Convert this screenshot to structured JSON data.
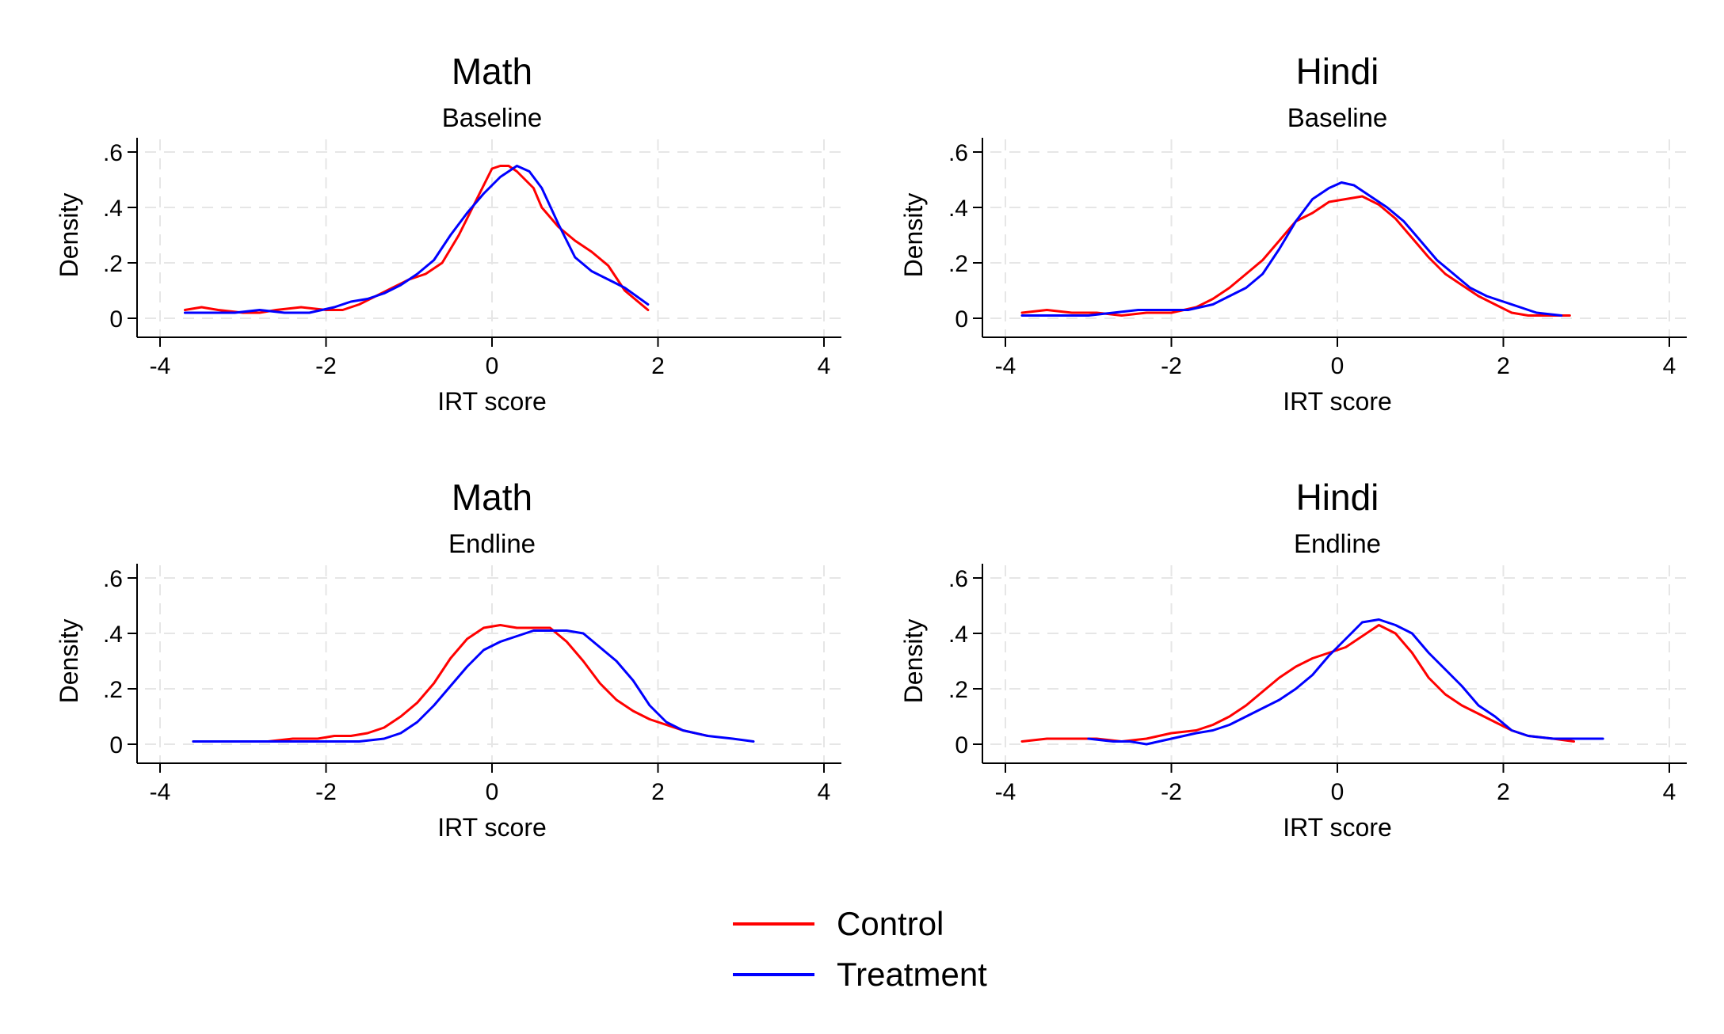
{
  "figure": {
    "colors": {
      "control": "#ff0000",
      "treatment": "#0000ff",
      "grid": "#e6e6e6",
      "axis": "#000000"
    },
    "legend": {
      "position": "bottom-center",
      "items": [
        "Control",
        "Treatment"
      ]
    }
  },
  "chart_data": [
    {
      "type": "line",
      "title": "Math",
      "subtitle": "Baseline",
      "xlabel": "IRT score",
      "ylabel": "Density",
      "xlim": [
        -4,
        4
      ],
      "ylim": [
        0,
        0.6
      ],
      "x_ticks": [
        "-4",
        "-2",
        "0",
        "2",
        "4"
      ],
      "y_ticks": [
        "0",
        ".2",
        ".4",
        ".6"
      ],
      "grid": true,
      "series": [
        {
          "name": "Control",
          "color": "#ff0000",
          "points": [
            [
              -3.7,
              0.03
            ],
            [
              -3.5,
              0.04
            ],
            [
              -3.3,
              0.03
            ],
            [
              -3.0,
              0.02
            ],
            [
              -2.8,
              0.02
            ],
            [
              -2.6,
              0.03
            ],
            [
              -2.3,
              0.04
            ],
            [
              -2.0,
              0.03
            ],
            [
              -1.8,
              0.03
            ],
            [
              -1.6,
              0.05
            ],
            [
              -1.4,
              0.08
            ],
            [
              -1.2,
              0.11
            ],
            [
              -1.0,
              0.14
            ],
            [
              -0.8,
              0.16
            ],
            [
              -0.6,
              0.2
            ],
            [
              -0.4,
              0.3
            ],
            [
              -0.2,
              0.42
            ],
            [
              0.0,
              0.54
            ],
            [
              0.1,
              0.55
            ],
            [
              0.2,
              0.55
            ],
            [
              0.3,
              0.53
            ],
            [
              0.5,
              0.47
            ],
            [
              0.6,
              0.4
            ],
            [
              0.8,
              0.33
            ],
            [
              1.0,
              0.28
            ],
            [
              1.2,
              0.24
            ],
            [
              1.4,
              0.19
            ],
            [
              1.6,
              0.1
            ],
            [
              1.8,
              0.05
            ],
            [
              1.88,
              0.03
            ]
          ]
        },
        {
          "name": "Treatment",
          "color": "#0000ff",
          "points": [
            [
              -3.7,
              0.02
            ],
            [
              -3.4,
              0.02
            ],
            [
              -3.1,
              0.02
            ],
            [
              -2.8,
              0.03
            ],
            [
              -2.5,
              0.02
            ],
            [
              -2.2,
              0.02
            ],
            [
              -1.9,
              0.04
            ],
            [
              -1.7,
              0.06
            ],
            [
              -1.5,
              0.07
            ],
            [
              -1.3,
              0.09
            ],
            [
              -1.1,
              0.12
            ],
            [
              -0.9,
              0.16
            ],
            [
              -0.7,
              0.21
            ],
            [
              -0.5,
              0.3
            ],
            [
              -0.3,
              0.38
            ],
            [
              -0.1,
              0.45
            ],
            [
              0.1,
              0.51
            ],
            [
              0.3,
              0.55
            ],
            [
              0.45,
              0.53
            ],
            [
              0.6,
              0.47
            ],
            [
              0.8,
              0.34
            ],
            [
              1.0,
              0.22
            ],
            [
              1.2,
              0.17
            ],
            [
              1.4,
              0.14
            ],
            [
              1.6,
              0.11
            ],
            [
              1.88,
              0.05
            ]
          ]
        }
      ]
    },
    {
      "type": "line",
      "title": "Hindi",
      "subtitle": "Baseline",
      "xlabel": "IRT score",
      "ylabel": "Density",
      "xlim": [
        -4,
        4
      ],
      "ylim": [
        0,
        0.6
      ],
      "x_ticks": [
        "-4",
        "-2",
        "0",
        "2",
        "4"
      ],
      "y_ticks": [
        "0",
        ".2",
        ".4",
        ".6"
      ],
      "grid": true,
      "series": [
        {
          "name": "Control",
          "color": "#ff0000",
          "points": [
            [
              -3.8,
              0.02
            ],
            [
              -3.5,
              0.03
            ],
            [
              -3.2,
              0.02
            ],
            [
              -2.9,
              0.02
            ],
            [
              -2.6,
              0.01
            ],
            [
              -2.3,
              0.02
            ],
            [
              -2.0,
              0.02
            ],
            [
              -1.7,
              0.04
            ],
            [
              -1.5,
              0.07
            ],
            [
              -1.3,
              0.11
            ],
            [
              -1.1,
              0.16
            ],
            [
              -0.9,
              0.21
            ],
            [
              -0.7,
              0.28
            ],
            [
              -0.5,
              0.35
            ],
            [
              -0.3,
              0.38
            ],
            [
              -0.1,
              0.42
            ],
            [
              0.1,
              0.43
            ],
            [
              0.3,
              0.44
            ],
            [
              0.5,
              0.41
            ],
            [
              0.7,
              0.36
            ],
            [
              0.9,
              0.29
            ],
            [
              1.1,
              0.22
            ],
            [
              1.3,
              0.16
            ],
            [
              1.5,
              0.12
            ],
            [
              1.7,
              0.08
            ],
            [
              1.9,
              0.05
            ],
            [
              2.1,
              0.02
            ],
            [
              2.3,
              0.01
            ],
            [
              2.5,
              0.01
            ],
            [
              2.8,
              0.01
            ]
          ]
        },
        {
          "name": "Treatment",
          "color": "#0000ff",
          "points": [
            [
              -3.8,
              0.01
            ],
            [
              -3.4,
              0.01
            ],
            [
              -3.0,
              0.01
            ],
            [
              -2.7,
              0.02
            ],
            [
              -2.4,
              0.03
            ],
            [
              -2.1,
              0.03
            ],
            [
              -1.8,
              0.03
            ],
            [
              -1.5,
              0.05
            ],
            [
              -1.3,
              0.08
            ],
            [
              -1.1,
              0.11
            ],
            [
              -0.9,
              0.16
            ],
            [
              -0.7,
              0.25
            ],
            [
              -0.5,
              0.35
            ],
            [
              -0.3,
              0.43
            ],
            [
              -0.1,
              0.47
            ],
            [
              0.05,
              0.49
            ],
            [
              0.2,
              0.48
            ],
            [
              0.4,
              0.44
            ],
            [
              0.6,
              0.4
            ],
            [
              0.8,
              0.35
            ],
            [
              1.0,
              0.28
            ],
            [
              1.2,
              0.21
            ],
            [
              1.4,
              0.16
            ],
            [
              1.6,
              0.11
            ],
            [
              1.8,
              0.08
            ],
            [
              2.0,
              0.06
            ],
            [
              2.2,
              0.04
            ],
            [
              2.4,
              0.02
            ],
            [
              2.7,
              0.01
            ]
          ]
        }
      ]
    },
    {
      "type": "line",
      "title": "Math",
      "subtitle": "Endline",
      "xlabel": "IRT score",
      "ylabel": "Density",
      "xlim": [
        -4,
        4
      ],
      "ylim": [
        0,
        0.6
      ],
      "x_ticks": [
        "-4",
        "-2",
        "0",
        "2",
        "4"
      ],
      "y_ticks": [
        "0",
        ".2",
        ".4",
        ".6"
      ],
      "grid": true,
      "series": [
        {
          "name": "Control",
          "color": "#ff0000",
          "points": [
            [
              -3.6,
              0.01
            ],
            [
              -3.3,
              0.01
            ],
            [
              -3.0,
              0.01
            ],
            [
              -2.7,
              0.01
            ],
            [
              -2.4,
              0.02
            ],
            [
              -2.1,
              0.02
            ],
            [
              -1.9,
              0.03
            ],
            [
              -1.7,
              0.03
            ],
            [
              -1.5,
              0.04
            ],
            [
              -1.3,
              0.06
            ],
            [
              -1.1,
              0.1
            ],
            [
              -0.9,
              0.15
            ],
            [
              -0.7,
              0.22
            ],
            [
              -0.5,
              0.31
            ],
            [
              -0.3,
              0.38
            ],
            [
              -0.1,
              0.42
            ],
            [
              0.1,
              0.43
            ],
            [
              0.3,
              0.42
            ],
            [
              0.5,
              0.42
            ],
            [
              0.7,
              0.42
            ],
            [
              0.9,
              0.37
            ],
            [
              1.1,
              0.3
            ],
            [
              1.3,
              0.22
            ],
            [
              1.5,
              0.16
            ],
            [
              1.7,
              0.12
            ],
            [
              1.9,
              0.09
            ],
            [
              2.1,
              0.07
            ],
            [
              2.3,
              0.05
            ],
            [
              2.6,
              0.03
            ]
          ]
        },
        {
          "name": "Treatment",
          "color": "#0000ff",
          "points": [
            [
              -3.6,
              0.01
            ],
            [
              -3.2,
              0.01
            ],
            [
              -2.8,
              0.01
            ],
            [
              -2.4,
              0.01
            ],
            [
              -2.0,
              0.01
            ],
            [
              -1.8,
              0.01
            ],
            [
              -1.6,
              0.01
            ],
            [
              -1.3,
              0.02
            ],
            [
              -1.1,
              0.04
            ],
            [
              -0.9,
              0.08
            ],
            [
              -0.7,
              0.14
            ],
            [
              -0.5,
              0.21
            ],
            [
              -0.3,
              0.28
            ],
            [
              -0.1,
              0.34
            ],
            [
              0.1,
              0.37
            ],
            [
              0.3,
              0.39
            ],
            [
              0.5,
              0.41
            ],
            [
              0.7,
              0.41
            ],
            [
              0.9,
              0.41
            ],
            [
              1.1,
              0.4
            ],
            [
              1.3,
              0.35
            ],
            [
              1.5,
              0.3
            ],
            [
              1.7,
              0.23
            ],
            [
              1.9,
              0.14
            ],
            [
              2.1,
              0.08
            ],
            [
              2.3,
              0.05
            ],
            [
              2.6,
              0.03
            ],
            [
              2.9,
              0.02
            ],
            [
              3.15,
              0.01
            ]
          ]
        }
      ]
    },
    {
      "type": "line",
      "title": "Hindi",
      "subtitle": "Endline",
      "xlabel": "IRT score",
      "ylabel": "Density",
      "xlim": [
        -4,
        4
      ],
      "ylim": [
        0,
        0.6
      ],
      "x_ticks": [
        "-4",
        "-2",
        "0",
        "2",
        "4"
      ],
      "y_ticks": [
        "0",
        ".2",
        ".4",
        ".6"
      ],
      "grid": true,
      "series": [
        {
          "name": "Control",
          "color": "#ff0000",
          "points": [
            [
              -3.8,
              0.01
            ],
            [
              -3.5,
              0.02
            ],
            [
              -3.2,
              0.02
            ],
            [
              -2.9,
              0.02
            ],
            [
              -2.6,
              0.01
            ],
            [
              -2.3,
              0.02
            ],
            [
              -2.0,
              0.04
            ],
            [
              -1.7,
              0.05
            ],
            [
              -1.5,
              0.07
            ],
            [
              -1.3,
              0.1
            ],
            [
              -1.1,
              0.14
            ],
            [
              -0.9,
              0.19
            ],
            [
              -0.7,
              0.24
            ],
            [
              -0.5,
              0.28
            ],
            [
              -0.3,
              0.31
            ],
            [
              -0.1,
              0.33
            ],
            [
              0.1,
              0.35
            ],
            [
              0.3,
              0.39
            ],
            [
              0.5,
              0.43
            ],
            [
              0.7,
              0.4
            ],
            [
              0.9,
              0.33
            ],
            [
              1.1,
              0.24
            ],
            [
              1.3,
              0.18
            ],
            [
              1.5,
              0.14
            ],
            [
              1.7,
              0.11
            ],
            [
              1.9,
              0.08
            ],
            [
              2.1,
              0.05
            ],
            [
              2.3,
              0.03
            ],
            [
              2.6,
              0.02
            ],
            [
              2.85,
              0.01
            ]
          ]
        },
        {
          "name": "Treatment",
          "color": "#0000ff",
          "points": [
            [
              -3.0,
              0.02
            ],
            [
              -2.7,
              0.01
            ],
            [
              -2.5,
              0.01
            ],
            [
              -2.3,
              0.0
            ],
            [
              -2.0,
              0.02
            ],
            [
              -1.7,
              0.04
            ],
            [
              -1.5,
              0.05
            ],
            [
              -1.3,
              0.07
            ],
            [
              -1.1,
              0.1
            ],
            [
              -0.9,
              0.13
            ],
            [
              -0.7,
              0.16
            ],
            [
              -0.5,
              0.2
            ],
            [
              -0.3,
              0.25
            ],
            [
              -0.1,
              0.32
            ],
            [
              0.1,
              0.38
            ],
            [
              0.3,
              0.44
            ],
            [
              0.5,
              0.45
            ],
            [
              0.7,
              0.43
            ],
            [
              0.9,
              0.4
            ],
            [
              1.1,
              0.33
            ],
            [
              1.3,
              0.27
            ],
            [
              1.5,
              0.21
            ],
            [
              1.7,
              0.14
            ],
            [
              1.9,
              0.1
            ],
            [
              2.1,
              0.05
            ],
            [
              2.3,
              0.03
            ],
            [
              2.6,
              0.02
            ],
            [
              3.2,
              0.02
            ]
          ]
        }
      ]
    }
  ]
}
